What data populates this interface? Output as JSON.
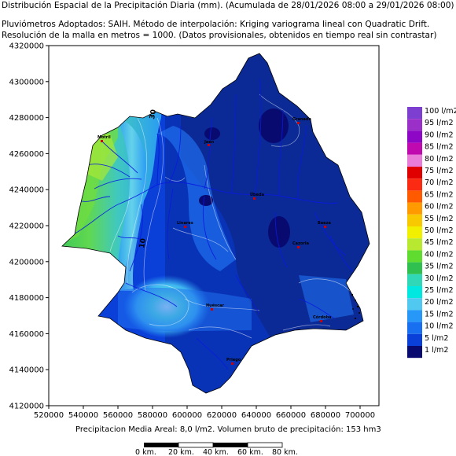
{
  "header": {
    "title": "Distribución Espacial de la Precipitación Diaria (mm). (Acumulada de 28/01/2026 08:00 a 29/01/2026 08:00)",
    "line2": "Pluviómetros Adoptados: SAIH.  Método de interpolación: Kriging variograma lineal con Quadratic Drift.",
    "line3": "Resolución de la malla en metros = 1000. (Datos provisionales, obtenidos en tiempo real sin contrastar)"
  },
  "axes": {
    "y_ticks": [
      "4320000",
      "4300000",
      "4280000",
      "4260000",
      "4240000",
      "4220000",
      "4200000",
      "4180000",
      "4160000",
      "4140000",
      "4120000"
    ],
    "x_ticks": [
      "520000",
      "540000",
      "560000",
      "580000",
      "600000",
      "620000",
      "640000",
      "660000",
      "680000",
      "700000"
    ]
  },
  "isolines": [
    "30",
    "10"
  ],
  "cities": [
    "Jaén",
    "Granada",
    "Úbeda",
    "Linares",
    "Baeza",
    "Cazorla",
    "Huéscar",
    "Córdoba",
    "Priego",
    "Motril"
  ],
  "legend": {
    "entries": [
      {
        "label": "100 l/m2",
        "color": "#7d3fd0"
      },
      {
        "label": "95 l/m2",
        "color": "#9a30c8"
      },
      {
        "label": "90 l/m2",
        "color": "#8e06c6"
      },
      {
        "label": "85 l/m2",
        "color": "#c00ab0"
      },
      {
        "label": "80 l/m2",
        "color": "#e87cd8"
      },
      {
        "label": "75 l/m2",
        "color": "#e00000"
      },
      {
        "label": "70 l/m2",
        "color": "#fb2a12"
      },
      {
        "label": "65 l/m2",
        "color": "#ff5a00"
      },
      {
        "label": "60 l/m2",
        "color": "#ff9a00"
      },
      {
        "label": "55 l/m2",
        "color": "#f8c800"
      },
      {
        "label": "50 l/m2",
        "color": "#f0f000"
      },
      {
        "label": "45 l/m2",
        "color": "#b8e830"
      },
      {
        "label": "40 l/m2",
        "color": "#60dc30"
      },
      {
        "label": "35 l/m2",
        "color": "#30c050"
      },
      {
        "label": "30 l/m2",
        "color": "#30d8b8"
      },
      {
        "label": "25 l/m2",
        "color": "#00e8e0"
      },
      {
        "label": "20 l/m2",
        "color": "#50c8f0"
      },
      {
        "label": "15 l/m2",
        "color": "#2898f8"
      },
      {
        "label": "10 l/m2",
        "color": "#1870f0"
      },
      {
        "label": "5 l/m2",
        "color": "#0a3fd8"
      },
      {
        "label": "1 l/m2",
        "color": "#080a70"
      }
    ]
  },
  "footer": {
    "summary": "Precipitacion Media Areal: 8,0 l/m2. Volumen bruto de precipitación: 153 hm3",
    "scale_labels": [
      "0 km.",
      "20 km.",
      "40 km.",
      "60 km.",
      "80 km."
    ]
  }
}
